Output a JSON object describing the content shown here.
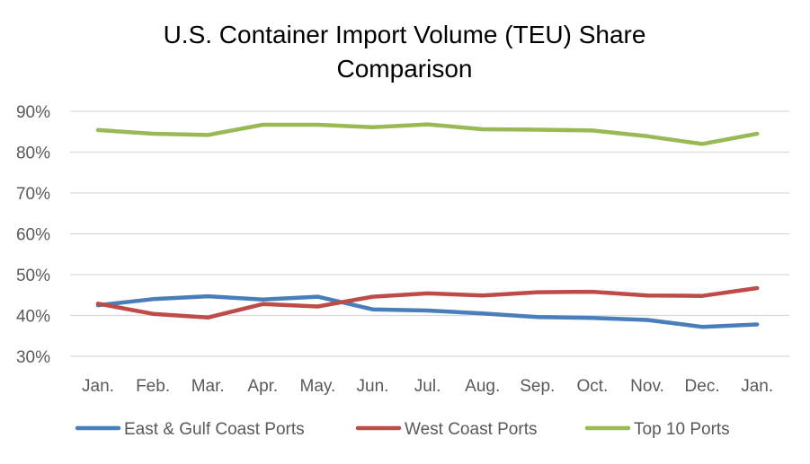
{
  "chart_data": {
    "type": "line",
    "title_line1": "U.S. Container Import Volume (TEU) Share",
    "title_line2": "Comparison",
    "xlabel": "",
    "ylabel": "",
    "categories": [
      "Jan.",
      "Feb.",
      "Mar.",
      "Apr.",
      "May.",
      "Jun.",
      "Jul.",
      "Aug.",
      "Sep.",
      "Oct.",
      "Nov.",
      "Dec.",
      "Jan."
    ],
    "ylim": [
      30,
      90
    ],
    "y_ticks": [
      30,
      40,
      50,
      60,
      70,
      80,
      90
    ],
    "y_tick_labels": [
      "30%",
      "40%",
      "50%",
      "60%",
      "70%",
      "80%",
      "90%"
    ],
    "grid": true,
    "legend_position": "bottom",
    "series": [
      {
        "name": "East & Gulf Coast Ports",
        "color": "#4a7ebb",
        "values": [
          42.5,
          44.0,
          44.7,
          43.9,
          44.6,
          41.5,
          41.2,
          40.5,
          39.6,
          39.4,
          38.9,
          37.2,
          37.8
        ]
      },
      {
        "name": "West Coast Ports",
        "color": "#be4b48",
        "values": [
          42.9,
          40.4,
          39.5,
          42.8,
          42.2,
          44.6,
          45.4,
          44.9,
          45.7,
          45.8,
          44.9,
          44.8,
          46.7
        ]
      },
      {
        "name": "Top 10 Ports",
        "color": "#98b954",
        "values": [
          85.4,
          84.5,
          84.2,
          86.7,
          86.7,
          86.1,
          86.8,
          85.6,
          85.5,
          85.3,
          83.9,
          82.0,
          84.5
        ]
      }
    ]
  }
}
